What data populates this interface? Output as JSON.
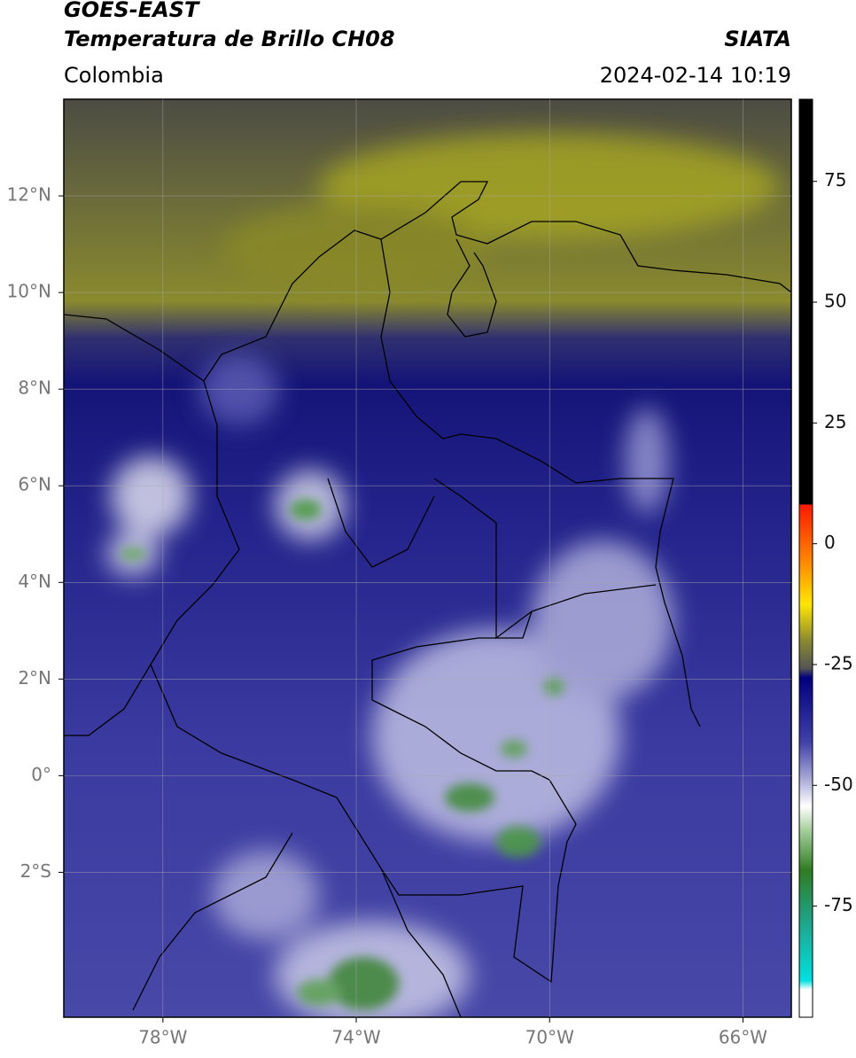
{
  "chart_data": {
    "type": "map",
    "title": "GOES-EAST",
    "subtitle": "Temperatura de Brillo CH08",
    "source": "SIATA",
    "region": "Colombia",
    "timestamp": "2024-02-14 10:19",
    "xlim": [
      -80.05,
      -65
    ],
    "ylim": [
      -5,
      14
    ],
    "xticks": [
      {
        "value": -78,
        "label": "78°W"
      },
      {
        "value": -74,
        "label": "74°W"
      },
      {
        "value": -70,
        "label": "70°W"
      },
      {
        "value": -66,
        "label": "66°W"
      }
    ],
    "yticks": [
      {
        "value": 12,
        "label": "12°N"
      },
      {
        "value": 10,
        "label": "10°N"
      },
      {
        "value": 8,
        "label": "8°N"
      },
      {
        "value": 6,
        "label": "6°N"
      },
      {
        "value": 4,
        "label": "4°N"
      },
      {
        "value": 2,
        "label": "2°N"
      },
      {
        "value": 0,
        "label": "0°"
      },
      {
        "value": -2,
        "label": "2°S"
      }
    ],
    "grid": true,
    "colorbar": {
      "lim": [
        -98,
        92
      ],
      "ticks": [
        75,
        50,
        25,
        0,
        -25,
        -50,
        -75
      ]
    }
  }
}
